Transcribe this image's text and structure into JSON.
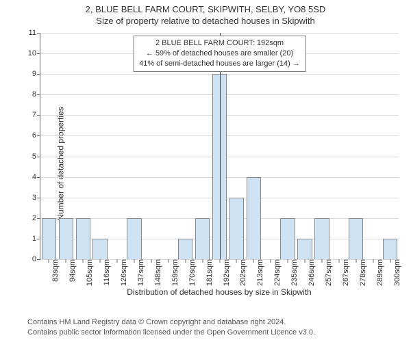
{
  "title_line1": "2, BLUE BELL FARM COURT, SKIPWITH, SELBY, YO8 5SD",
  "title_line2": "Size of property relative to detached houses in Skipwith",
  "y_axis_label": "Number of detached properties",
  "x_axis_title": "Distribution of detached houses by size in Skipwith",
  "footer_line1": "Contains HM Land Registry data © Crown copyright and database right 2024.",
  "footer_line2": "Contains public sector information licensed under the Open Government Licence v3.0.",
  "chart": {
    "type": "histogram",
    "ylim": [
      0,
      11
    ],
    "y_ticks": [
      0,
      1,
      2,
      3,
      4,
      5,
      6,
      7,
      8,
      9,
      10,
      11
    ],
    "categories": [
      "83sqm",
      "94sqm",
      "105sqm",
      "116sqm",
      "126sqm",
      "137sqm",
      "148sqm",
      "159sqm",
      "170sqm",
      "181sqm",
      "192sqm",
      "202sqm",
      "213sqm",
      "224sqm",
      "235sqm",
      "246sqm",
      "257sqm",
      "267sqm",
      "278sqm",
      "289sqm",
      "300sqm"
    ],
    "values": [
      2,
      2,
      2,
      1,
      0,
      2,
      0,
      0,
      1,
      2,
      9,
      3,
      4,
      0,
      2,
      1,
      2,
      0,
      2,
      0,
      1
    ],
    "bar_color": "#cfe2f3",
    "bar_border_color": "#888888",
    "grid_color": "#d9d9d9",
    "background_color": "#ffffff",
    "axis_color": "#666666",
    "label_fontsize": 11,
    "bar_width": 0.86,
    "reference_line": {
      "after_index": 10,
      "color": "#cc0000"
    },
    "annotation": {
      "line1": "2 BLUE BELL FARM COURT: 192sqm",
      "line2": "← 59% of detached houses are smaller (20)",
      "line3": "41% of semi-detached houses are larger (14) →",
      "border_color": "#7a7a7a",
      "background": "#ffffff"
    }
  }
}
